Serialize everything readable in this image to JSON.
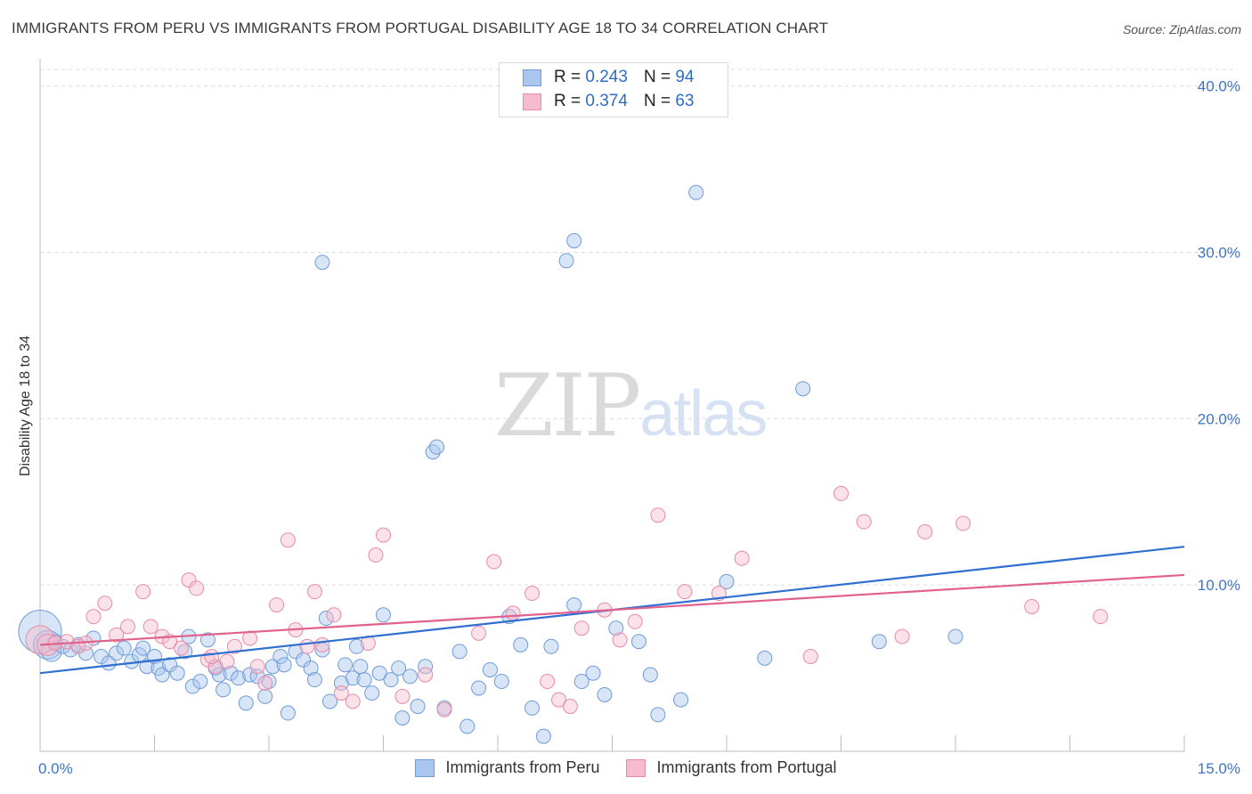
{
  "header": {
    "title": "IMMIGRANTS FROM PERU VS IMMIGRANTS FROM PORTUGAL DISABILITY AGE 18 TO 34 CORRELATION CHART",
    "source": "Source: ZipAtlas.com"
  },
  "watermark": {
    "zip": "ZIP",
    "atlas": "atlas"
  },
  "legend": {
    "rows": [
      {
        "r_label": "R = ",
        "r_value": "0.243",
        "n_label": "N = ",
        "n_value": "94"
      },
      {
        "r_label": "R = ",
        "r_value": "0.374",
        "n_label": "N = ",
        "n_value": "63"
      }
    ]
  },
  "colors": {
    "peru_fill": "#a9c6ee",
    "peru_stroke": "#6f9bd8",
    "peru_line": "#2f6fd0",
    "portugal_fill": "#f6bccd",
    "portugal_stroke": "#e88ba8",
    "portugal_line": "#e0628c",
    "tick_text": "#3f74c5",
    "grid": "#dcdcdc"
  },
  "chart_data": {
    "type": "scatter",
    "title": "IMMIGRANTS FROM PERU VS IMMIGRANTS FROM PORTUGAL DISABILITY AGE 18 TO 34 CORRELATION CHART",
    "xlabel": "",
    "ylabel": "Disability Age 18 to 34",
    "xlim": [
      0,
      15
    ],
    "ylim": [
      0,
      41
    ],
    "x_tick_labels": [
      "0.0%",
      "15.0%"
    ],
    "y_ticks": [
      10,
      20,
      30,
      40
    ],
    "y_tick_labels": [
      "10.0%",
      "20.0%",
      "30.0%",
      "40.0%"
    ],
    "grid": true,
    "legend_position": "top-center",
    "series": [
      {
        "name": "Immigrants from Peru",
        "r": 0.243,
        "n": 94,
        "trend": {
          "x": [
            0,
            15
          ],
          "y": [
            4.7,
            12.3
          ]
        },
        "points": [
          [
            0.0,
            7.2,
            3
          ],
          [
            0.1,
            6.4,
            2
          ],
          [
            0.15,
            6.0,
            1.4
          ],
          [
            0.2,
            6.6,
            1
          ],
          [
            0.3,
            6.3,
            1
          ],
          [
            0.4,
            6.1,
            1
          ],
          [
            0.5,
            6.4,
            1
          ],
          [
            0.6,
            5.9,
            1
          ],
          [
            0.7,
            6.8,
            1
          ],
          [
            0.8,
            5.7,
            1
          ],
          [
            0.9,
            5.3,
            1
          ],
          [
            1.0,
            5.9,
            1
          ],
          [
            1.1,
            6.2,
            1
          ],
          [
            1.2,
            5.4,
            1
          ],
          [
            1.3,
            5.8,
            1
          ],
          [
            1.35,
            6.2,
            1
          ],
          [
            1.4,
            5.1,
            1
          ],
          [
            1.5,
            5.7,
            1
          ],
          [
            1.55,
            5.0,
            1
          ],
          [
            1.6,
            4.6,
            1
          ],
          [
            1.7,
            5.2,
            1
          ],
          [
            1.8,
            4.7,
            1
          ],
          [
            1.9,
            6.0,
            1
          ],
          [
            1.95,
            6.9,
            1
          ],
          [
            2.0,
            3.9,
            1
          ],
          [
            2.1,
            4.2,
            1
          ],
          [
            2.2,
            6.7,
            1
          ],
          [
            2.3,
            5.0,
            1
          ],
          [
            2.35,
            4.6,
            1
          ],
          [
            2.4,
            3.7,
            1
          ],
          [
            2.5,
            4.7,
            1
          ],
          [
            2.6,
            4.4,
            1
          ],
          [
            2.7,
            2.9,
            1
          ],
          [
            2.75,
            4.6,
            1
          ],
          [
            2.85,
            4.5,
            1
          ],
          [
            2.95,
            3.3,
            1
          ],
          [
            3.0,
            4.2,
            1
          ],
          [
            3.05,
            5.1,
            1
          ],
          [
            3.15,
            5.7,
            1
          ],
          [
            3.2,
            5.2,
            1
          ],
          [
            3.25,
            2.3,
            1
          ],
          [
            3.35,
            6.0,
            1
          ],
          [
            3.45,
            5.5,
            1
          ],
          [
            3.55,
            5.0,
            1
          ],
          [
            3.6,
            4.3,
            1
          ],
          [
            3.7,
            6.1,
            1
          ],
          [
            3.75,
            8.0,
            1
          ],
          [
            3.8,
            3.0,
            1
          ],
          [
            3.95,
            4.1,
            1
          ],
          [
            4.0,
            5.2,
            1
          ],
          [
            4.1,
            4.4,
            1
          ],
          [
            4.15,
            6.3,
            1
          ],
          [
            4.2,
            5.1,
            1
          ],
          [
            4.25,
            4.3,
            1
          ],
          [
            4.35,
            3.5,
            1
          ],
          [
            4.45,
            4.7,
            1
          ],
          [
            4.5,
            8.2,
            1
          ],
          [
            4.6,
            4.3,
            1
          ],
          [
            4.7,
            5.0,
            1
          ],
          [
            4.75,
            2.0,
            1
          ],
          [
            4.85,
            4.5,
            1
          ],
          [
            4.95,
            2.7,
            1
          ],
          [
            5.05,
            5.1,
            1
          ],
          [
            5.15,
            18.0,
            1
          ],
          [
            5.3,
            2.6,
            1
          ],
          [
            5.5,
            6.0,
            1
          ],
          [
            5.6,
            1.5,
            1
          ],
          [
            5.75,
            3.8,
            1
          ],
          [
            5.9,
            4.9,
            1
          ],
          [
            6.05,
            4.2,
            1
          ],
          [
            6.15,
            8.1,
            1
          ],
          [
            6.3,
            6.4,
            1
          ],
          [
            6.45,
            2.6,
            1
          ],
          [
            6.6,
            0.9,
            1
          ],
          [
            6.7,
            6.3,
            1
          ],
          [
            6.9,
            29.5,
            1
          ],
          [
            7.0,
            8.8,
            1
          ],
          [
            7.1,
            4.2,
            1
          ],
          [
            7.25,
            4.7,
            1
          ],
          [
            7.4,
            3.4,
            1
          ],
          [
            7.55,
            7.4,
            1
          ],
          [
            7.85,
            6.6,
            1
          ],
          [
            8.0,
            4.6,
            1
          ],
          [
            8.1,
            2.2,
            1
          ],
          [
            8.4,
            3.1,
            1
          ],
          [
            8.6,
            33.6,
            1
          ],
          [
            9.0,
            10.2,
            1
          ],
          [
            9.5,
            5.6,
            1
          ],
          [
            10.0,
            21.8,
            1
          ],
          [
            11.0,
            6.6,
            1
          ],
          [
            12.0,
            6.9,
            1
          ],
          [
            3.7,
            29.4,
            1
          ],
          [
            5.2,
            18.3,
            1
          ],
          [
            7.0,
            30.7,
            1
          ]
        ]
      },
      {
        "name": "Immigrants from Portugal",
        "r": 0.374,
        "n": 63,
        "trend": {
          "x": [
            0,
            15
          ],
          "y": [
            6.4,
            10.6
          ]
        },
        "points": [
          [
            0.0,
            6.7,
            2
          ],
          [
            0.1,
            6.4,
            1.5
          ],
          [
            0.2,
            6.5,
            1
          ],
          [
            0.35,
            6.6,
            1
          ],
          [
            0.5,
            6.3,
            1
          ],
          [
            0.6,
            6.5,
            1
          ],
          [
            0.7,
            8.1,
            1
          ],
          [
            0.85,
            8.9,
            1
          ],
          [
            1.0,
            7.0,
            1
          ],
          [
            1.15,
            7.5,
            1
          ],
          [
            1.35,
            9.6,
            1
          ],
          [
            1.45,
            7.5,
            1
          ],
          [
            1.6,
            6.9,
            1
          ],
          [
            1.7,
            6.6,
            1
          ],
          [
            1.85,
            6.2,
            1
          ],
          [
            1.95,
            10.3,
            1
          ],
          [
            2.05,
            9.8,
            1
          ],
          [
            2.2,
            5.5,
            1
          ],
          [
            2.3,
            5.1,
            1
          ],
          [
            2.45,
            5.4,
            1
          ],
          [
            2.55,
            6.3,
            1
          ],
          [
            2.75,
            6.8,
            1
          ],
          [
            2.85,
            5.1,
            1
          ],
          [
            2.95,
            4.1,
            1
          ],
          [
            3.1,
            8.8,
            1
          ],
          [
            3.25,
            12.7,
            1
          ],
          [
            3.35,
            7.3,
            1
          ],
          [
            3.5,
            6.3,
            1
          ],
          [
            3.6,
            9.6,
            1
          ],
          [
            3.7,
            6.4,
            1
          ],
          [
            3.85,
            8.2,
            1
          ],
          [
            3.95,
            3.5,
            1
          ],
          [
            4.1,
            3.0,
            1
          ],
          [
            4.3,
            6.5,
            1
          ],
          [
            4.4,
            11.8,
            1
          ],
          [
            4.5,
            13.0,
            1
          ],
          [
            4.75,
            3.3,
            1
          ],
          [
            5.05,
            4.6,
            1
          ],
          [
            5.3,
            2.5,
            1
          ],
          [
            5.75,
            7.1,
            1
          ],
          [
            5.95,
            11.4,
            1
          ],
          [
            6.2,
            8.3,
            1
          ],
          [
            6.45,
            9.5,
            1
          ],
          [
            6.65,
            4.2,
            1
          ],
          [
            6.8,
            3.1,
            1
          ],
          [
            6.95,
            2.7,
            1
          ],
          [
            7.1,
            7.4,
            1
          ],
          [
            7.4,
            8.5,
            1
          ],
          [
            7.6,
            6.7,
            1
          ],
          [
            7.8,
            7.8,
            1
          ],
          [
            8.1,
            14.2,
            1
          ],
          [
            8.45,
            9.6,
            1
          ],
          [
            8.9,
            9.5,
            1
          ],
          [
            9.2,
            11.6,
            1
          ],
          [
            10.1,
            5.7,
            1
          ],
          [
            10.5,
            15.5,
            1
          ],
          [
            10.8,
            13.8,
            1
          ],
          [
            11.3,
            6.9,
            1
          ],
          [
            11.6,
            13.2,
            1
          ],
          [
            12.1,
            13.7,
            1
          ],
          [
            13.0,
            8.7,
            1
          ],
          [
            13.9,
            8.1,
            1
          ],
          [
            2.25,
            5.7,
            1
          ]
        ]
      }
    ]
  },
  "axis": {
    "ylabel": "Disability Age 18 to 34",
    "x_left": "0.0%",
    "x_right": "15.0%"
  }
}
